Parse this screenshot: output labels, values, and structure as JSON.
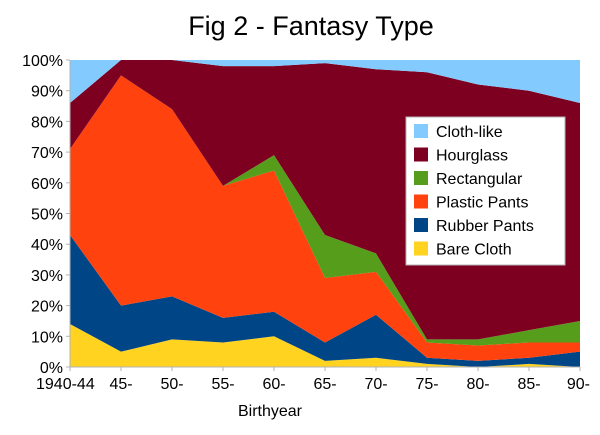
{
  "chart_data": {
    "type": "area",
    "stacked": true,
    "title": "Fig 2 - Fantasy Type",
    "xlabel": "Birthyear",
    "ylabel": "",
    "ylim": [
      0,
      100
    ],
    "y_ticks": [
      "0%",
      "10%",
      "20%",
      "30%",
      "40%",
      "50%",
      "60%",
      "70%",
      "80%",
      "90%",
      "100%"
    ],
    "categories": [
      "1940-44",
      "45-",
      "50-",
      "55-",
      "60-",
      "65-",
      "70-",
      "75-",
      "80-",
      "85-",
      "90-"
    ],
    "x_tick_labels": [
      "1940-44",
      "45-",
      "50-",
      "55-",
      "60-",
      "65-",
      "70-",
      "75-",
      "80-",
      "85-",
      "90-"
    ],
    "series": [
      {
        "name": "Bare Cloth",
        "color": "#ffd320",
        "values": [
          14,
          5,
          9,
          8,
          10,
          2,
          3,
          1,
          0,
          1,
          0
        ]
      },
      {
        "name": "Rubber Pants",
        "color": "#004586",
        "values": [
          29,
          15,
          14,
          8,
          8,
          6,
          14,
          2,
          2,
          2,
          5
        ]
      },
      {
        "name": "Plastic Pants",
        "color": "#ff420e",
        "values": [
          28,
          75,
          61,
          43,
          46,
          21,
          14,
          5,
          5,
          5,
          3
        ]
      },
      {
        "name": "Rectangular",
        "color": "#579d1c",
        "values": [
          0,
          0,
          0,
          0,
          5,
          14,
          6,
          1,
          2,
          4,
          7
        ]
      },
      {
        "name": "Hourglass",
        "color": "#7e0021",
        "values": [
          15,
          5,
          16,
          39,
          29,
          56,
          60,
          87,
          83,
          78,
          71
        ]
      },
      {
        "name": "Cloth-like",
        "color": "#83caff",
        "values": [
          14,
          0,
          0,
          2,
          2,
          1,
          3,
          4,
          8,
          10,
          14
        ]
      }
    ],
    "legend": {
      "placement": "right",
      "entries": [
        "Cloth-like",
        "Hourglass",
        "Rectangular",
        "Plastic Pants",
        "Rubber Pants",
        "Bare Cloth"
      ]
    },
    "grid": false
  }
}
